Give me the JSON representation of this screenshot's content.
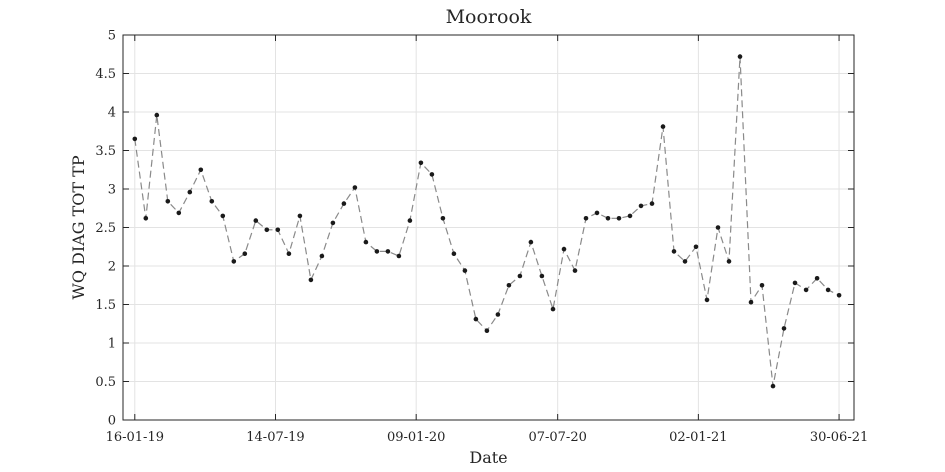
{
  "chart_data": {
    "type": "line",
    "title": "Moorook",
    "xlabel": "Date",
    "ylabel": "WQ DIAG TOT TP",
    "ylim": [
      0,
      5
    ],
    "yticks": [
      0,
      0.5,
      1,
      1.5,
      2,
      2.5,
      3,
      3.5,
      4,
      4.5,
      5
    ],
    "ytick_labels": [
      "0",
      "0.5",
      "1",
      "1.5",
      "2",
      "2.5",
      "3",
      "3.5",
      "4",
      "4.5",
      "5"
    ],
    "xlim": [
      "2019-01-01",
      "2021-07-19"
    ],
    "xticks": [
      "2019-01-16",
      "2019-07-14",
      "2020-01-09",
      "2020-07-07",
      "2021-01-02",
      "2021-06-30"
    ],
    "xtick_labels": [
      "16-01-19",
      "14-07-19",
      "09-01-20",
      "07-07-20",
      "02-01-21",
      "30-06-21"
    ],
    "grid": true,
    "line_color": "#8a8a8a",
    "marker_color": "#1a1a1a",
    "series": [
      {
        "x": [
          "2019-01-16",
          "2019-01-30",
          "2019-02-13",
          "2019-02-27",
          "2019-03-13",
          "2019-03-27",
          "2019-04-10",
          "2019-04-24",
          "2019-05-08",
          "2019-05-22",
          "2019-06-05",
          "2019-06-19",
          "2019-07-03",
          "2019-07-17",
          "2019-07-31",
          "2019-08-14",
          "2019-08-28",
          "2019-09-11",
          "2019-09-25",
          "2019-10-09",
          "2019-10-23",
          "2019-11-06",
          "2019-11-20",
          "2019-12-04",
          "2019-12-18",
          "2020-01-01",
          "2020-01-15",
          "2020-01-29",
          "2020-02-12",
          "2020-02-26",
          "2020-03-11",
          "2020-03-25",
          "2020-04-08",
          "2020-04-22",
          "2020-05-06",
          "2020-05-20",
          "2020-06-03",
          "2020-06-17",
          "2020-07-01",
          "2020-07-15",
          "2020-07-29",
          "2020-08-12",
          "2020-08-26",
          "2020-09-09",
          "2020-09-23",
          "2020-10-07",
          "2020-10-21",
          "2020-11-04",
          "2020-11-18",
          "2020-12-02",
          "2020-12-16",
          "2020-12-30",
          "2021-01-13",
          "2021-01-27",
          "2021-02-10",
          "2021-02-24",
          "2021-03-10",
          "2021-03-24",
          "2021-04-07",
          "2021-04-21",
          "2021-05-05",
          "2021-05-19",
          "2021-06-02",
          "2021-06-16",
          "2021-06-30"
        ],
        "values": [
          3.65,
          2.62,
          3.96,
          2.84,
          2.69,
          2.96,
          3.25,
          2.84,
          2.65,
          2.06,
          2.16,
          2.59,
          2.47,
          2.47,
          2.16,
          2.65,
          1.82,
          2.13,
          2.56,
          2.81,
          3.02,
          2.31,
          2.19,
          2.19,
          2.13,
          2.59,
          3.34,
          3.19,
          2.62,
          2.16,
          1.94,
          1.31,
          1.16,
          1.37,
          1.75,
          1.87,
          2.31,
          1.87,
          1.44,
          2.22,
          1.94,
          2.62,
          2.69,
          2.62,
          2.62,
          2.65,
          2.78,
          2.81,
          3.81,
          2.19,
          2.06,
          2.25,
          1.56,
          2.5,
          2.06,
          4.72,
          1.53,
          1.75,
          0.44,
          1.19,
          1.78,
          1.69,
          1.84,
          1.69,
          1.62
        ]
      }
    ]
  }
}
